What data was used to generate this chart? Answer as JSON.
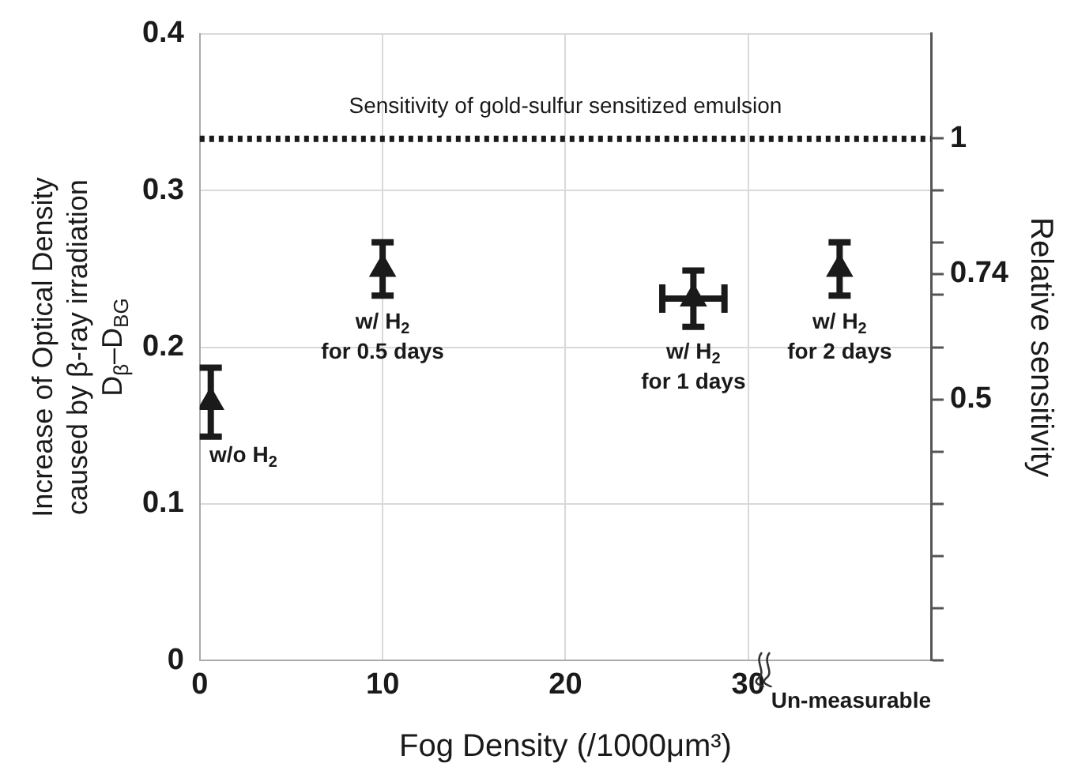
{
  "chart_data": {
    "type": "scatter",
    "xlabel": "Fog Density (/1000μm³)",
    "ylabel": "Increase of Optical Density\ncaused by β-ray irradiation\nD$_{β}$–D$_{BG}$",
    "y2label": "Relative sensitivity",
    "series": [
      {
        "color": "#1a1a1a",
        "x": [
          0.6,
          10,
          27,
          35
        ],
        "values": [
          0.165,
          0.25,
          0.231,
          0.25
        ],
        "errors": [
          0.022,
          0.017,
          0.018,
          0.017
        ],
        "xerrors": [
          null,
          null,
          1.7,
          null
        ]
      }
    ],
    "xlim": [
      0,
      40
    ],
    "xticks": [
      0,
      10,
      20,
      30
    ],
    "ylim": [
      0,
      0.4
    ],
    "yticks": [
      0,
      0.1,
      0.2,
      0.3,
      0.4
    ],
    "y2lim": [
      0,
      1.2
    ],
    "y2ticks": [
      {
        "value": 0,
        "label": null
      },
      {
        "value": 0.1,
        "label": null
      },
      {
        "value": 0.2,
        "label": null
      },
      {
        "value": 0.3,
        "label": null
      },
      {
        "value": 0.4,
        "label": null
      },
      0.5,
      {
        "value": 0.6,
        "label": null
      },
      {
        "value": 0.7,
        "label": null
      },
      0.74,
      {
        "value": 0.8,
        "label": null
      },
      {
        "value": 0.9,
        "label": null
      },
      1
    ],
    "ref_lines": [
      {
        "axis": "y",
        "value": 0.333,
        "label": "Sensitivity of gold-sulfur sensitized emulsion",
        "line_style": "dotted",
        "color": "#1a1a1a"
      }
    ],
    "annotations": [
      {
        "text": "w/o H$_{2}$",
        "x": 0.6,
        "y": 0.165
      },
      {
        "text": "w/ H$_{2}$\nfor 0.5 days",
        "x": 10,
        "y": 0.25
      },
      {
        "text": "w/ H$_{2}$\nfor 1 days",
        "x": 27,
        "y": 0.231
      },
      {
        "text": "w/ H$_{2}$\nfor 2 days",
        "x": 35,
        "y": 0.25
      },
      "Un-measurable"
    ],
    "grid": true,
    "legend": false,
    "marker": "triangle"
  }
}
